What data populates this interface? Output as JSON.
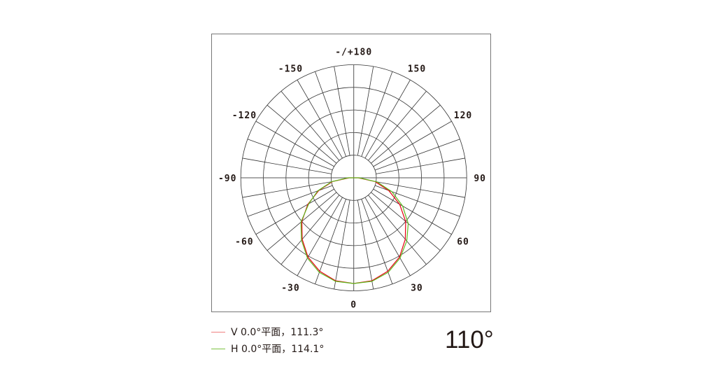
{
  "chart_data": {
    "type": "polar",
    "angle_labels": [
      {
        "angle": 180,
        "text": "-/+180"
      },
      {
        "angle": 150,
        "text": "150"
      },
      {
        "angle": -150,
        "text": "-150"
      },
      {
        "angle": 120,
        "text": "120"
      },
      {
        "angle": -120,
        "text": "-120"
      },
      {
        "angle": 90,
        "text": "90"
      },
      {
        "angle": -90,
        "text": "-90"
      },
      {
        "angle": 60,
        "text": "60"
      },
      {
        "angle": -60,
        "text": "-60"
      },
      {
        "angle": 30,
        "text": "30"
      },
      {
        "angle": -30,
        "text": "-30"
      },
      {
        "angle": 0,
        "text": "0"
      }
    ],
    "ring_count": 5,
    "radial_step_deg": 10,
    "angles": [
      -90,
      -80,
      -70,
      -60,
      -50,
      -40,
      -30,
      -20,
      -10,
      0,
      10,
      20,
      30,
      40,
      50,
      60,
      70,
      80,
      90
    ],
    "series": [
      {
        "name": "V 0.0°平面，111.3°",
        "color": "#e60012",
        "values": [
          0.04,
          0.19,
          0.33,
          0.47,
          0.6,
          0.71,
          0.81,
          0.88,
          0.925,
          0.935,
          0.925,
          0.88,
          0.81,
          0.71,
          0.6,
          0.47,
          0.33,
          0.19,
          0.04
        ]
      },
      {
        "name": "H 0.0°平面，114.1°",
        "color": "#5dbb1e",
        "values": [
          0.05,
          0.2,
          0.34,
          0.46,
          0.61,
          0.72,
          0.82,
          0.89,
          0.93,
          0.935,
          0.93,
          0.89,
          0.82,
          0.73,
          0.63,
          0.5,
          0.36,
          0.21,
          0.05
        ]
      }
    ],
    "grid": true
  },
  "legend": [
    {
      "label": "V 0.0°平面，111.3°",
      "color": "#f08080"
    },
    {
      "label": "H 0.0°平面，114.1°",
      "color": "#7cc242"
    }
  ],
  "beam_angle": "110°"
}
